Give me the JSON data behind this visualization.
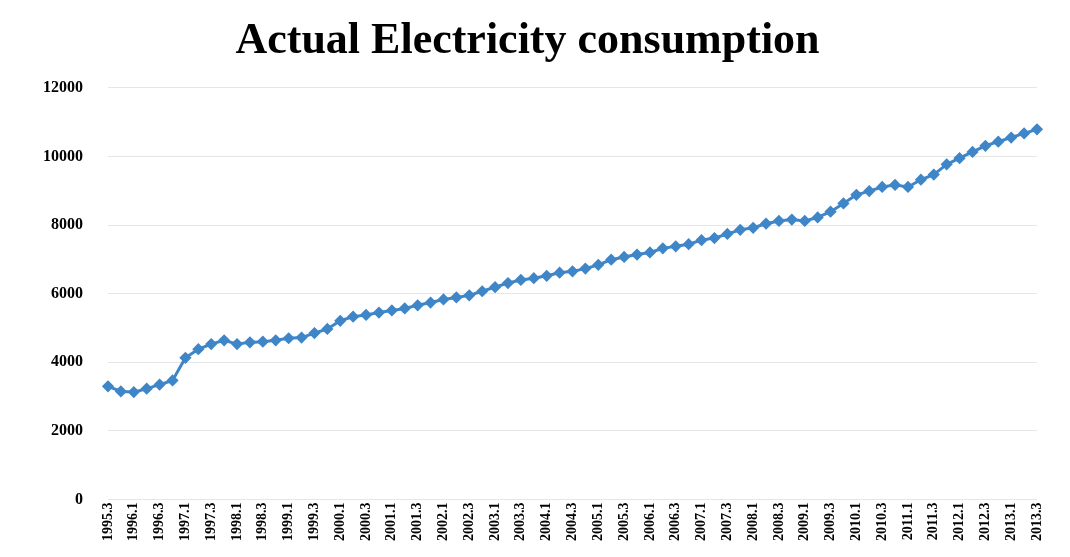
{
  "chart_data": {
    "type": "line",
    "title": "Actual Electricity consumption",
    "categories": [
      "1995.3",
      null,
      "1996.1",
      null,
      "1996.3",
      null,
      "1997.1",
      null,
      "1997.3",
      null,
      "1998.1",
      null,
      "1998.3",
      null,
      "1999.1",
      null,
      "1999.3",
      null,
      "2000.1",
      null,
      "2000.3",
      null,
      "2001.1",
      null,
      "2001.3",
      null,
      "2002.1",
      null,
      "2002.3",
      null,
      "2003.1",
      null,
      "2003.3",
      null,
      "2004.1",
      null,
      "2004.3",
      null,
      "2005.1",
      null,
      "2005.3",
      null,
      "2006.1",
      null,
      "2006.3",
      null,
      "2007.1",
      null,
      "2007.3",
      null,
      "2008.1",
      null,
      "2008.3",
      null,
      "2009.1",
      null,
      "2009.3",
      null,
      "2010.1",
      null,
      "2010.3",
      null,
      "2011.1",
      null,
      "2011.3",
      null,
      "2012.1",
      null,
      "2012.3",
      null,
      "2013.1",
      null,
      "2013.3"
    ],
    "series": [
      {
        "color": "#3f86c8",
        "values": [
          3300,
          3150,
          3130,
          3230,
          3350,
          3470,
          4130,
          4380,
          4530,
          4640,
          4530,
          4580,
          4600,
          4640,
          4700,
          4720,
          4850,
          4970,
          5210,
          5330,
          5380,
          5450,
          5510,
          5570,
          5660,
          5740,
          5830,
          5890,
          5950,
          6070,
          6190,
          6310,
          6400,
          6450,
          6520,
          6610,
          6650,
          6730,
          6840,
          6990,
          7070,
          7140,
          7200,
          7320,
          7380,
          7440,
          7560,
          7620,
          7740,
          7860,
          7920,
          8040,
          8120,
          8160,
          8120,
          8220,
          8390,
          8630,
          8880,
          8990,
          9110,
          9170,
          9110,
          9320,
          9470,
          9770,
          9950,
          10130,
          10310,
          10430,
          10550,
          10670,
          10790
        ]
      }
    ],
    "ylim": [
      0,
      12000
    ],
    "yticks": [
      0,
      2000,
      4000,
      6000,
      8000,
      10000,
      12000
    ],
    "grid": "y",
    "legend": false,
    "marker": "diamond",
    "line_style": "solid"
  }
}
